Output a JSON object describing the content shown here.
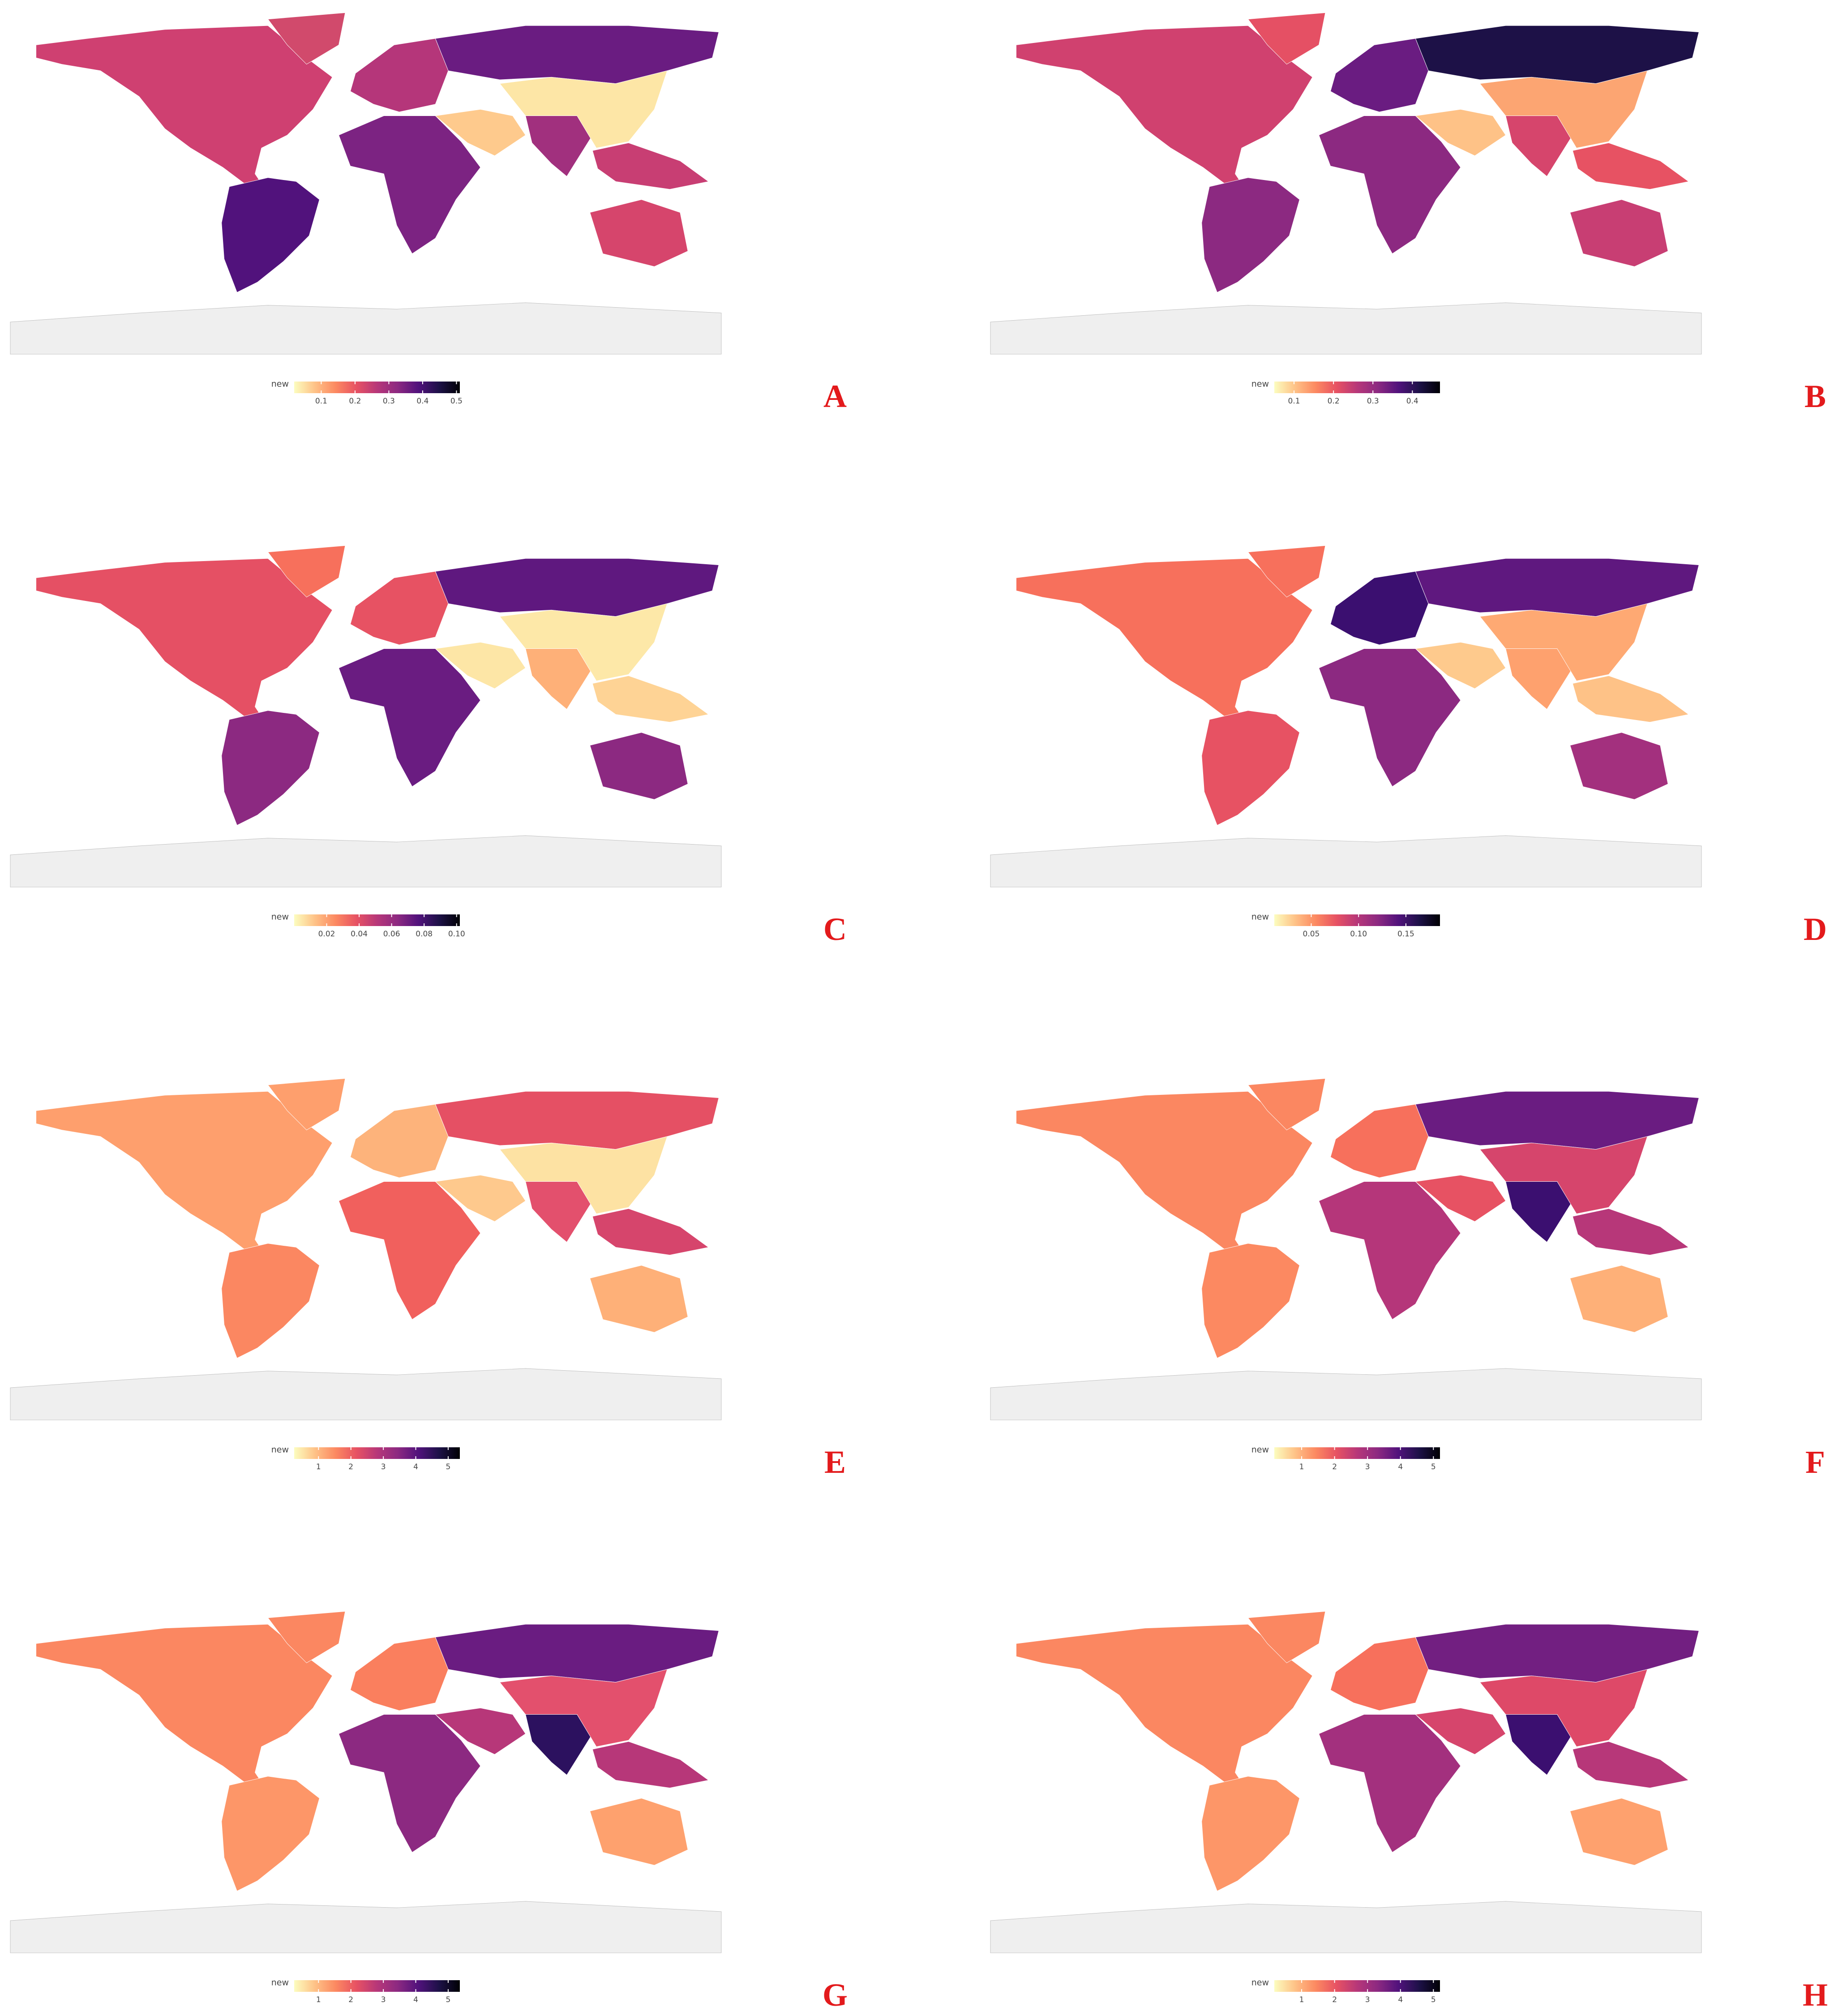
{
  "colorscale": [
    "#fcfdbf",
    "#fec287",
    "#fc8961",
    "#e75263",
    "#b73779",
    "#8c2981",
    "#51127c",
    "#1d1147",
    "#000004"
  ],
  "chart_data": [
    {
      "type": "choropleth",
      "panel_label": "A",
      "legend_title": "new",
      "clim": [
        0.02,
        0.51
      ],
      "cticks": [
        0.1,
        0.2,
        0.3,
        0.4,
        0.5
      ],
      "region_colors": [
        "#cf4071",
        "#d14a6c",
        "#51127c",
        "#b5367a",
        "#6a1c81",
        "#7c2382",
        "#feca8d",
        "#a1307e",
        "#fde6a6",
        "#c83e73",
        "#d6456c",
        "#efefef"
      ]
    },
    {
      "type": "choropleth",
      "panel_label": "B",
      "legend_title": "new",
      "clim": [
        0.05,
        0.47
      ],
      "cticks": [
        0.1,
        0.2,
        0.3,
        0.4
      ],
      "region_colors": [
        "#d0416f",
        "#e55064",
        "#8c2981",
        "#6a1c81",
        "#1d1147",
        "#8c2981",
        "#fec287",
        "#d6456c",
        "#fca572",
        "#e75263",
        "#c83e73",
        "#efefef"
      ]
    },
    {
      "type": "choropleth",
      "panel_label": "C",
      "legend_title": "new",
      "clim": [
        0,
        0.102
      ],
      "cticks": [
        0.02,
        0.04,
        0.06,
        0.08,
        {
          "value": 0.1,
          "label": "0.10"
        }
      ],
      "region_colors": [
        "#e55064",
        "#f7705c",
        "#8c2981",
        "#e75263",
        "#5f187f",
        "#6a1c81",
        "#fde6a6",
        "#feb078",
        "#fde8a8",
        "#fed395",
        "#8c2981",
        "#efefef"
      ]
    },
    {
      "type": "choropleth",
      "panel_label": "D",
      "legend_title": "new",
      "clim": [
        0.011,
        0.186
      ],
      "cticks": [
        0.05,
        {
          "value": 0.1,
          "label": "0.10"
        },
        0.15
      ],
      "region_colors": [
        "#f7705c",
        "#f7705c",
        "#e75263",
        "#3b0f70",
        "#5f187f",
        "#8c2981",
        "#feca8d",
        "#fea16e",
        "#fea973",
        "#fec287",
        "#a3307e",
        "#efefef"
      ]
    },
    {
      "type": "choropleth",
      "panel_label": "E",
      "legend_title": "new",
      "clim": [
        0.25,
        5.36
      ],
      "cticks": [
        1,
        2,
        3,
        4,
        5
      ],
      "region_colors": [
        "#fe9f6d",
        "#fe9f6d",
        "#fb8761",
        "#fdb37b",
        "#e55064",
        "#f1605d",
        "#fec98d",
        "#e3506d",
        "#fde2a3",
        "#d6456c",
        "#feb078",
        "#efefef"
      ]
    },
    {
      "type": "choropleth",
      "panel_label": "F",
      "legend_title": "new",
      "clim": [
        0.17,
        5.2
      ],
      "cticks": [
        1,
        2,
        3,
        4,
        5
      ],
      "region_colors": [
        "#fb8761",
        "#fb8761",
        "#fc8961",
        "#f7705c",
        "#6a1c81",
        "#b5367a",
        "#e75263",
        "#3b0f70",
        "#d6456c",
        "#b73779",
        "#feb078",
        "#efefef"
      ]
    },
    {
      "type": "choropleth",
      "panel_label": "G",
      "legend_title": "new",
      "clim": [
        0.25,
        5.36
      ],
      "cticks": [
        1,
        2,
        3,
        4,
        5
      ],
      "region_colors": [
        "#fb8761",
        "#fb8761",
        "#fd9668",
        "#fa7f5e",
        "#6a1c81",
        "#8c2981",
        "#b73779",
        "#2c115f",
        "#e3506d",
        "#b73779",
        "#fea16e",
        "#efefef"
      ]
    },
    {
      "type": "choropleth",
      "panel_label": "H",
      "legend_title": "new",
      "clim": [
        0.17,
        5.2
      ],
      "cticks": [
        1,
        2,
        3,
        4,
        5
      ],
      "region_colors": [
        "#fb8761",
        "#fb8761",
        "#fd9668",
        "#f7705c",
        "#721f81",
        "#a3307e",
        "#d6456c",
        "#3b0f70",
        "#de4968",
        "#b73779",
        "#fea16e",
        "#efefef"
      ]
    }
  ]
}
